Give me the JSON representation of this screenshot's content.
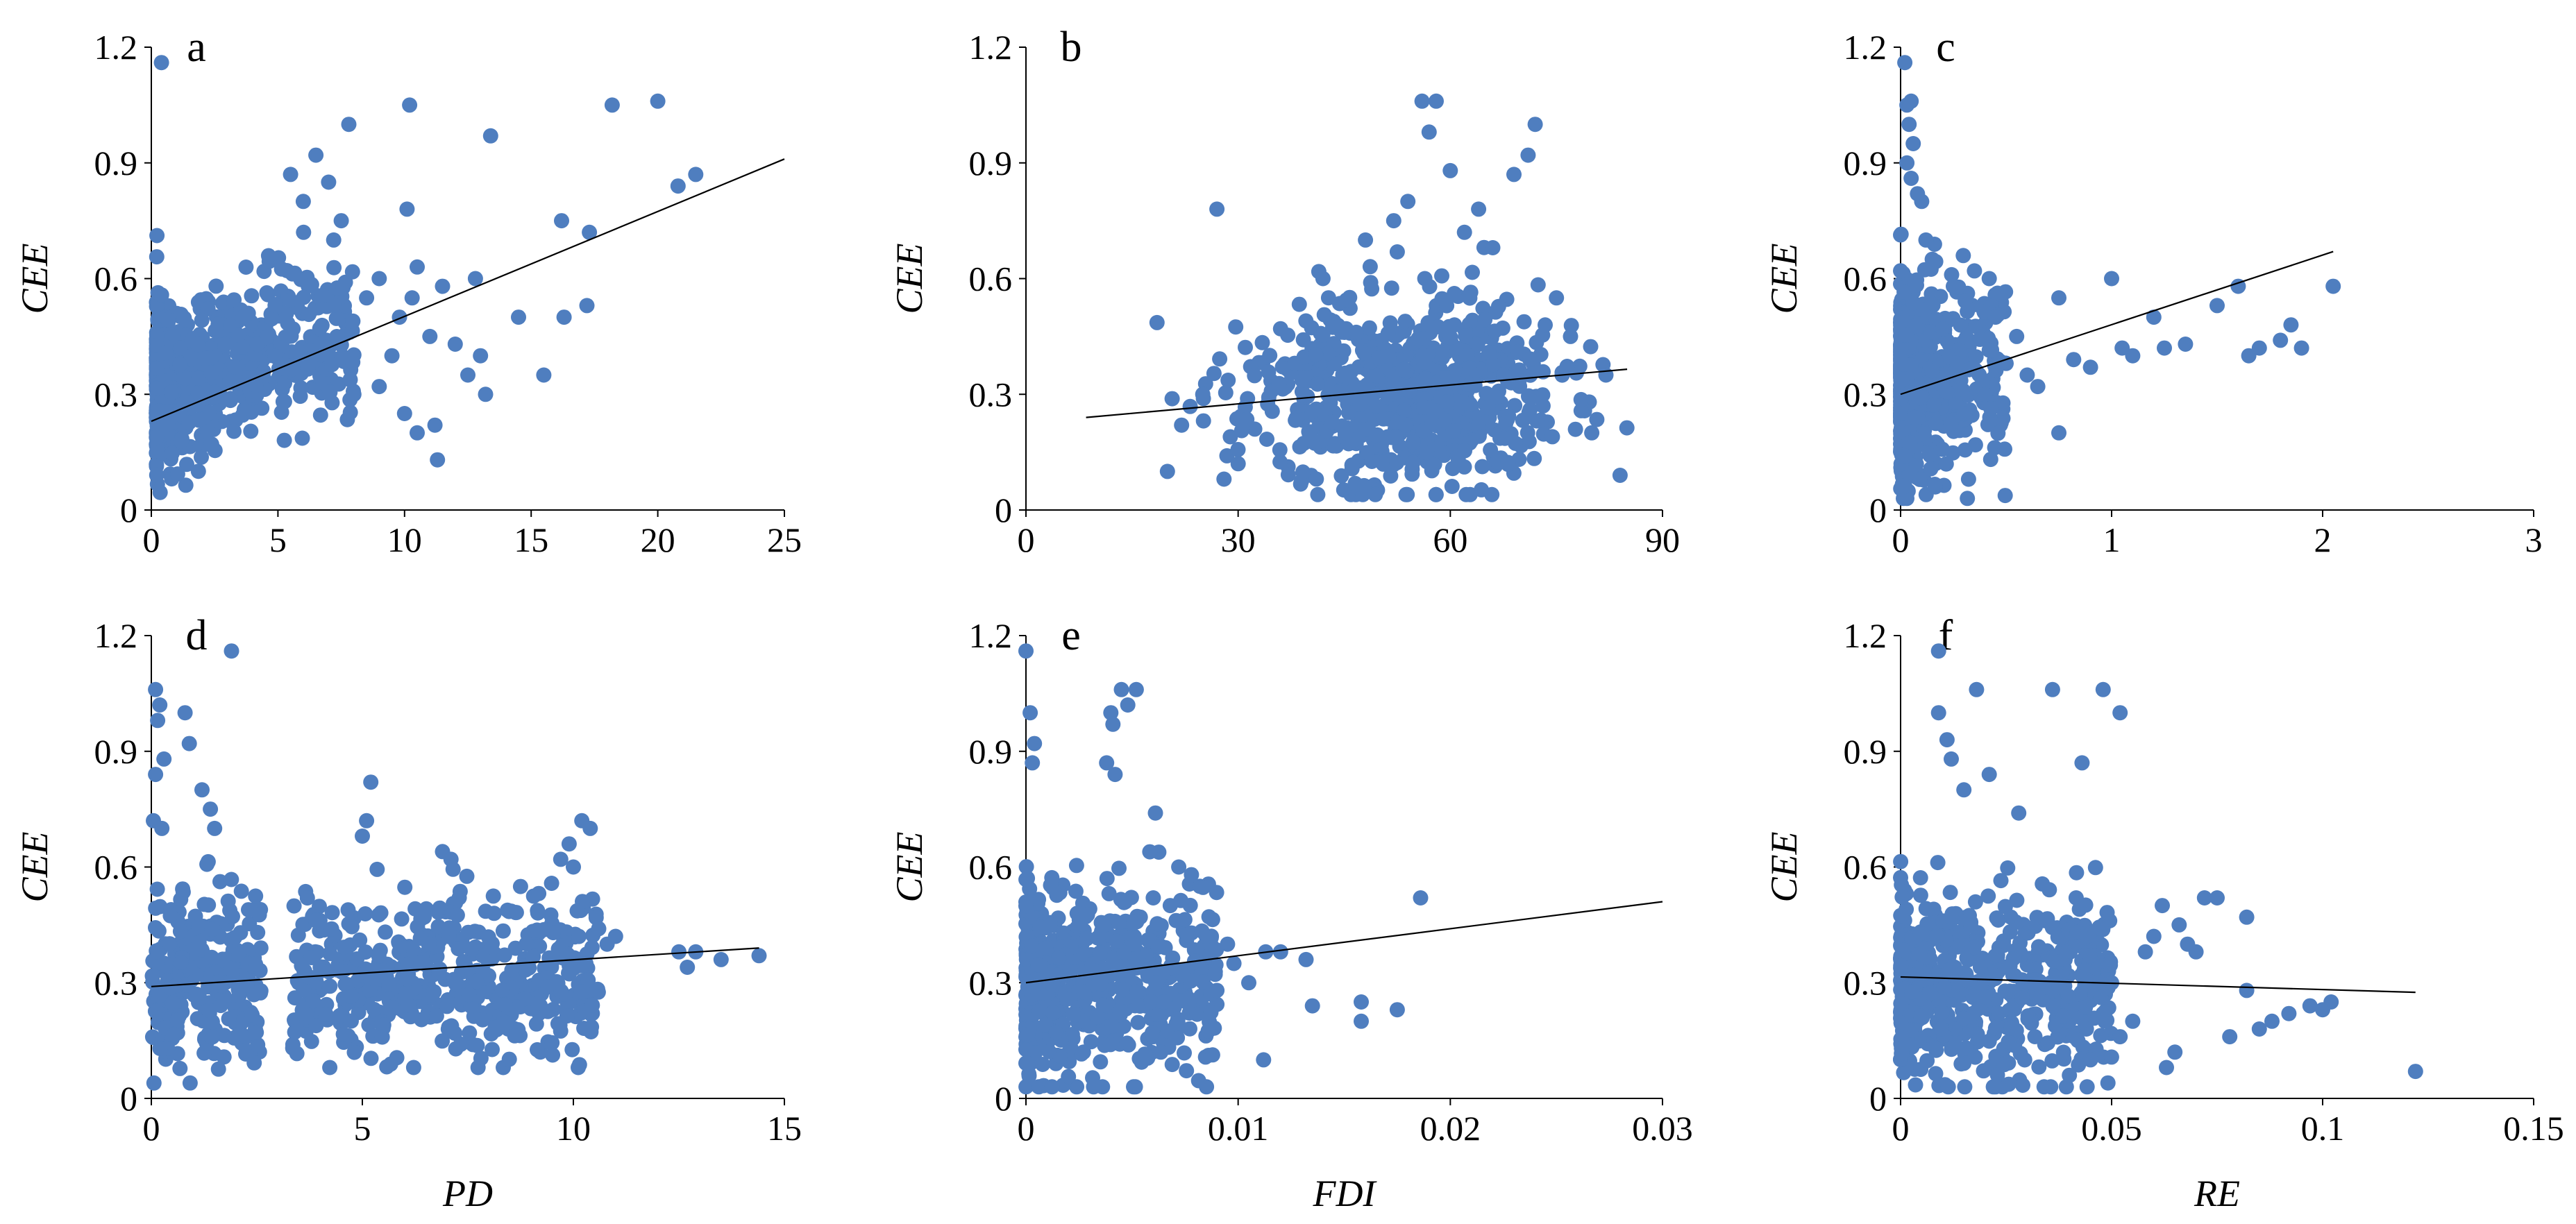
{
  "figure": {
    "point_color": "#4F7EBF",
    "line_color": "#000000"
  },
  "chart_data": [
    {
      "panel": "a",
      "type": "scatter",
      "xlabel": "",
      "ylabel": "CEE",
      "xlim": [
        0,
        25
      ],
      "ylim": [
        0,
        1.2
      ],
      "xticks": [
        0,
        5,
        10,
        15,
        20,
        25
      ],
      "yticks": [
        0,
        0.3,
        0.6,
        0.9,
        1.2
      ],
      "xtick_labels": [
        "0",
        "5",
        "10",
        "15",
        "20",
        "25"
      ],
      "ytick_labels": [
        "0",
        "0.3",
        "0.6",
        "0.9",
        "1.2"
      ],
      "trendline": {
        "x": [
          0,
          25
        ],
        "y": [
          0.23,
          0.91
        ]
      },
      "cloud": {
        "count": 650,
        "x_range": [
          0.2,
          8.0
        ],
        "x_skew": 2.2,
        "y_center": 0.32,
        "y_spread": 0.11,
        "slope": 0.02,
        "y_min": 0.03,
        "seed": 11
      },
      "points": [
        [
          0.4,
          1.16
        ],
        [
          7.8,
          1.0
        ],
        [
          10.2,
          1.05
        ],
        [
          18.2,
          1.05
        ],
        [
          20.0,
          1.06
        ],
        [
          13.4,
          0.97
        ],
        [
          21.5,
          0.87
        ],
        [
          20.8,
          0.84
        ],
        [
          17.3,
          0.72
        ],
        [
          16.2,
          0.75
        ],
        [
          16.3,
          0.5
        ],
        [
          17.2,
          0.53
        ],
        [
          15.5,
          0.35
        ],
        [
          14.5,
          0.5
        ],
        [
          13.2,
          0.3
        ],
        [
          11.3,
          0.13
        ],
        [
          6.5,
          0.92
        ],
        [
          7.0,
          0.85
        ],
        [
          5.5,
          0.87
        ],
        [
          10.1,
          0.78
        ],
        [
          9.0,
          0.6
        ],
        [
          10.5,
          0.63
        ],
        [
          11.5,
          0.58
        ],
        [
          12.0,
          0.43
        ],
        [
          10.0,
          0.25
        ],
        [
          10.5,
          0.2
        ],
        [
          9.5,
          0.4
        ],
        [
          8.5,
          0.55
        ],
        [
          12.5,
          0.35
        ],
        [
          11.0,
          0.45
        ],
        [
          9.8,
          0.5
        ],
        [
          8.0,
          0.3
        ],
        [
          9.0,
          0.32
        ],
        [
          12.8,
          0.6
        ],
        [
          7.5,
          0.75
        ],
        [
          6.0,
          0.8
        ],
        [
          7.2,
          0.7
        ],
        [
          10.3,
          0.55
        ],
        [
          11.2,
          0.22
        ],
        [
          13.0,
          0.4
        ]
      ]
    },
    {
      "panel": "b",
      "type": "scatter",
      "xlabel": "",
      "ylabel": "CEE",
      "xlim": [
        0,
        90
      ],
      "ylim": [
        0,
        1.2
      ],
      "xticks": [
        0,
        30,
        60,
        90
      ],
      "yticks": [
        0,
        0.3,
        0.6,
        0.9,
        1.2
      ],
      "xtick_labels": [
        "0",
        "30",
        "60",
        "90"
      ],
      "ytick_labels": [
        "0",
        "0.3",
        "0.6",
        "0.9",
        "1.2"
      ],
      "trendline": {
        "x": [
          8.5,
          85
        ],
        "y": [
          0.24,
          0.365
        ]
      },
      "cloud": {
        "count": 720,
        "x_range": [
          18,
          85
        ],
        "x_center": 53,
        "x_spread": 11,
        "y_center": 0.3,
        "y_spread": 0.12,
        "slope": 0.0,
        "y_min": 0.04,
        "seed": 23
      },
      "points": [
        [
          27,
          0.78
        ],
        [
          56,
          1.06
        ],
        [
          58,
          1.06
        ],
        [
          57,
          0.98
        ],
        [
          72,
          1.0
        ],
        [
          69,
          0.87
        ],
        [
          71,
          0.92
        ],
        [
          54,
          0.8
        ],
        [
          52,
          0.75
        ],
        [
          48,
          0.7
        ],
        [
          62,
          0.72
        ],
        [
          66,
          0.68
        ],
        [
          75,
          0.55
        ],
        [
          80,
          0.2
        ],
        [
          82,
          0.35
        ],
        [
          84,
          0.09
        ],
        [
          77,
          0.45
        ],
        [
          20,
          0.1
        ],
        [
          22,
          0.22
        ],
        [
          25,
          0.3
        ],
        [
          28,
          0.08
        ],
        [
          30,
          0.12
        ],
        [
          36,
          0.47
        ],
        [
          42,
          0.6
        ],
        [
          60,
          0.88
        ],
        [
          64,
          0.78
        ]
      ]
    },
    {
      "panel": "c",
      "type": "scatter",
      "xlabel": "",
      "ylabel": "CEE",
      "xlim": [
        0,
        3
      ],
      "ylim": [
        0,
        1.2
      ],
      "xticks": [
        0,
        1,
        2,
        3
      ],
      "yticks": [
        0,
        0.3,
        0.6,
        0.9,
        1.2
      ],
      "xtick_labels": [
        "0",
        "1",
        "2",
        "3"
      ],
      "ytick_labels": [
        "0",
        "0.3",
        "0.6",
        "0.9",
        "1.2"
      ],
      "trendline": {
        "x": [
          0,
          2.05
        ],
        "y": [
          0.3,
          0.67
        ]
      },
      "cloud": {
        "count": 560,
        "x_range": [
          0,
          0.5
        ],
        "x_skew": 3.2,
        "y_center": 0.32,
        "y_spread": 0.13,
        "slope": 0.05,
        "y_min": 0.03,
        "seed": 37
      },
      "points": [
        [
          0.02,
          1.16
        ],
        [
          0.03,
          1.05
        ],
        [
          0.05,
          1.06
        ],
        [
          0.04,
          1.0
        ],
        [
          0.06,
          0.95
        ],
        [
          0.03,
          0.9
        ],
        [
          0.05,
          0.86
        ],
        [
          2.05,
          0.58
        ],
        [
          1.6,
          0.58
        ],
        [
          1.65,
          0.4
        ],
        [
          1.7,
          0.42
        ],
        [
          1.8,
          0.44
        ],
        [
          1.85,
          0.48
        ],
        [
          1.9,
          0.42
        ],
        [
          1.5,
          0.53
        ],
        [
          1.35,
          0.43
        ],
        [
          1.25,
          0.42
        ],
        [
          1.2,
          0.5
        ],
        [
          1.1,
          0.4
        ],
        [
          1.05,
          0.42
        ],
        [
          1.0,
          0.6
        ],
        [
          0.9,
          0.37
        ],
        [
          0.82,
          0.39
        ],
        [
          0.75,
          0.55
        ],
        [
          0.75,
          0.2
        ],
        [
          0.65,
          0.32
        ],
        [
          0.6,
          0.35
        ],
        [
          0.55,
          0.45
        ],
        [
          0.5,
          0.38
        ],
        [
          0.45,
          0.5
        ],
        [
          0.42,
          0.6
        ],
        [
          0.4,
          0.3
        ],
        [
          0.35,
          0.62
        ],
        [
          0.3,
          0.25
        ],
        [
          0.25,
          0.58
        ],
        [
          0.2,
          0.47
        ],
        [
          0.15,
          0.65
        ],
        [
          0.12,
          0.7
        ],
        [
          0.1,
          0.8
        ],
        [
          0.08,
          0.82
        ]
      ]
    },
    {
      "panel": "d",
      "type": "scatter",
      "xlabel": "PD",
      "ylabel": "CEE",
      "xlim": [
        0,
        15
      ],
      "ylim": [
        0,
        1.2
      ],
      "xticks": [
        0,
        5,
        10,
        15
      ],
      "yticks": [
        0,
        0.3,
        0.6,
        0.9,
        1.2
      ],
      "xtick_labels": [
        "0",
        "5",
        "10",
        "15"
      ],
      "ytick_labels": [
        "0",
        "0.3",
        "0.6",
        "0.9",
        "1.2"
      ],
      "trendline": {
        "x": [
          0,
          14.4
        ],
        "y": [
          0.29,
          0.39
        ]
      },
      "clusters": [
        {
          "count": 260,
          "x_range": [
            0,
            2.6
          ],
          "y_center": 0.3,
          "y_spread": 0.12,
          "y_min": 0.04,
          "seed": 41
        },
        {
          "count": 190,
          "x_range": [
            3.3,
            6.0
          ],
          "y_center": 0.3,
          "y_spread": 0.11,
          "y_min": 0.08,
          "seed": 43
        },
        {
          "count": 330,
          "x_range": [
            6.0,
            10.6
          ],
          "y_center": 0.32,
          "y_spread": 0.11,
          "y_min": 0.08,
          "seed": 47
        }
      ],
      "points": [
        [
          1.9,
          1.16
        ],
        [
          0.1,
          1.06
        ],
        [
          0.2,
          1.02
        ],
        [
          0.15,
          0.98
        ],
        [
          0.8,
          1.0
        ],
        [
          0.9,
          0.92
        ],
        [
          0.3,
          0.88
        ],
        [
          0.1,
          0.84
        ],
        [
          1.2,
          0.8
        ],
        [
          1.4,
          0.75
        ],
        [
          1.5,
          0.7
        ],
        [
          0.05,
          0.72
        ],
        [
          0.25,
          0.7
        ],
        [
          5.2,
          0.82
        ],
        [
          5.1,
          0.72
        ],
        [
          5.0,
          0.68
        ],
        [
          6.9,
          0.64
        ],
        [
          7.1,
          0.62
        ],
        [
          10.2,
          0.72
        ],
        [
          10.4,
          0.7
        ],
        [
          9.9,
          0.66
        ],
        [
          9.7,
          0.62
        ],
        [
          10.0,
          0.6
        ],
        [
          12.5,
          0.38
        ],
        [
          12.9,
          0.38
        ],
        [
          12.7,
          0.34
        ],
        [
          13.5,
          0.36
        ],
        [
          14.4,
          0.37
        ],
        [
          11.0,
          0.42
        ],
        [
          10.8,
          0.4
        ],
        [
          10.6,
          0.44
        ]
      ]
    },
    {
      "panel": "e",
      "type": "scatter",
      "xlabel": "FDI",
      "ylabel": "CEE",
      "xlim": [
        0,
        0.03
      ],
      "ylim": [
        0,
        1.2
      ],
      "xticks": [
        0,
        0.01,
        0.02,
        0.03
      ],
      "yticks": [
        0,
        0.3,
        0.6,
        0.9,
        1.2
      ],
      "xtick_labels": [
        "0",
        "0.01",
        "0.02",
        "0.03"
      ],
      "ytick_labels": [
        "0",
        "0.3",
        "0.6",
        "0.9",
        "1.2"
      ],
      "trendline": {
        "x": [
          0,
          0.03
        ],
        "y": [
          0.3,
          0.51
        ]
      },
      "cloud": {
        "count": 640,
        "x_range": [
          0,
          0.009
        ],
        "x_skew": 2.0,
        "y_center": 0.31,
        "y_spread": 0.12,
        "slope": 0.0,
        "y_min": 0.03,
        "seed": 53
      },
      "points": [
        [
          0.0,
          1.16
        ],
        [
          0.0002,
          1.0
        ],
        [
          0.0004,
          0.92
        ],
        [
          0.0003,
          0.87
        ],
        [
          0.0045,
          1.06
        ],
        [
          0.0052,
          1.06
        ],
        [
          0.0048,
          1.02
        ],
        [
          0.004,
          1.0
        ],
        [
          0.0041,
          0.97
        ],
        [
          0.0038,
          0.87
        ],
        [
          0.0042,
          0.84
        ],
        [
          0.0061,
          0.74
        ],
        [
          0.0186,
          0.52
        ],
        [
          0.0175,
          0.23
        ],
        [
          0.0158,
          0.25
        ],
        [
          0.0158,
          0.2
        ],
        [
          0.0135,
          0.24
        ],
        [
          0.0132,
          0.36
        ],
        [
          0.012,
          0.38
        ],
        [
          0.0113,
          0.38
        ],
        [
          0.0112,
          0.1
        ],
        [
          0.0105,
          0.3
        ],
        [
          0.0098,
          0.35
        ],
        [
          0.0095,
          0.4
        ],
        [
          0.009,
          0.28
        ],
        [
          0.0085,
          0.42
        ],
        [
          0.0082,
          0.55
        ],
        [
          0.0078,
          0.58
        ],
        [
          0.0072,
          0.6
        ],
        [
          0.0068,
          0.5
        ],
        [
          0.0065,
          0.25
        ],
        [
          0.006,
          0.52
        ]
      ]
    },
    {
      "panel": "f",
      "type": "scatter",
      "xlabel": "RE",
      "ylabel": "CEE",
      "xlim": [
        0,
        0.15
      ],
      "ylim": [
        0,
        1.2
      ],
      "xticks": [
        0,
        0.05,
        0.1,
        0.15
      ],
      "yticks": [
        0,
        0.3,
        0.6,
        0.9,
        1.2
      ],
      "xtick_labels": [
        "0",
        "0.05",
        "0.1",
        "0.15"
      ],
      "ytick_labels": [
        "0",
        "0.3",
        "0.6",
        "0.9",
        "1.2"
      ],
      "trendline": {
        "x": [
          0,
          0.122
        ],
        "y": [
          0.315,
          0.275
        ]
      },
      "cloud": {
        "count": 620,
        "x_range": [
          0,
          0.05
        ],
        "x_skew": 1.8,
        "y_center": 0.3,
        "y_spread": 0.12,
        "slope": 0.0,
        "y_min": 0.03,
        "seed": 61
      },
      "points": [
        [
          0.009,
          1.16
        ],
        [
          0.018,
          1.06
        ],
        [
          0.036,
          1.06
        ],
        [
          0.048,
          1.06
        ],
        [
          0.052,
          1.0
        ],
        [
          0.043,
          0.87
        ],
        [
          0.021,
          0.84
        ],
        [
          0.015,
          0.8
        ],
        [
          0.028,
          0.74
        ],
        [
          0.012,
          0.88
        ],
        [
          0.011,
          0.93
        ],
        [
          0.009,
          1.0
        ],
        [
          0.122,
          0.07
        ],
        [
          0.102,
          0.25
        ],
        [
          0.1,
          0.23
        ],
        [
          0.097,
          0.24
        ],
        [
          0.092,
          0.22
        ],
        [
          0.088,
          0.2
        ],
        [
          0.085,
          0.18
        ],
        [
          0.082,
          0.28
        ],
        [
          0.082,
          0.47
        ],
        [
          0.078,
          0.16
        ],
        [
          0.075,
          0.52
        ],
        [
          0.072,
          0.52
        ],
        [
          0.07,
          0.38
        ],
        [
          0.068,
          0.4
        ],
        [
          0.066,
          0.45
        ],
        [
          0.065,
          0.12
        ],
        [
          0.063,
          0.08
        ],
        [
          0.062,
          0.5
        ],
        [
          0.06,
          0.42
        ],
        [
          0.058,
          0.38
        ],
        [
          0.055,
          0.2
        ],
        [
          0.052,
          0.16
        ],
        [
          0.05,
          0.3
        ],
        [
          0.048,
          0.22
        ],
        [
          0.045,
          0.1
        ],
        [
          0.042,
          0.15
        ],
        [
          0.04,
          0.06
        ]
      ]
    }
  ]
}
